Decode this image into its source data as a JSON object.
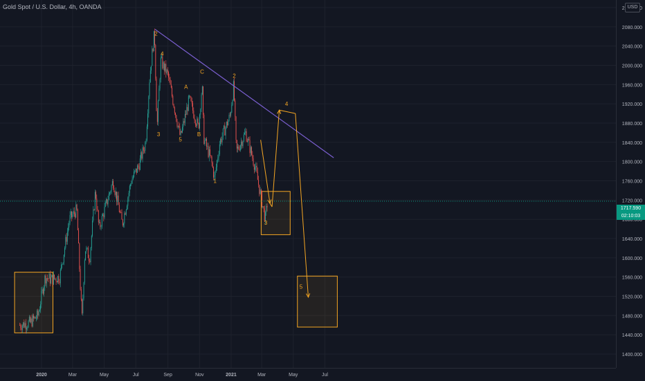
{
  "header": {
    "title": "Gold Spot / U.S. Dollar, 4h, OANDA",
    "currency": "USD"
  },
  "last_price": {
    "value": "1717.590",
    "countdown": "02:10:03"
  },
  "colors": {
    "background": "#131722",
    "grid": "#1e222d",
    "candle_up": "#26a69a",
    "candle_down": "#ef5350",
    "trendline": "#7b5fd1",
    "annotation": "#f5a623",
    "price_line": "#089981"
  },
  "chart_data": {
    "type": "candlestick",
    "symbol": "Gold Spot / U.S. Dollar",
    "interval": "4h",
    "ylim": [
      1400,
      2120
    ],
    "y_ticks": [
      1400,
      1440,
      1480,
      1520,
      1560,
      1600,
      1640,
      1680,
      1720,
      1760,
      1800,
      1840,
      1880,
      1920,
      1960,
      2000,
      2040,
      2080,
      2120
    ],
    "y_tick_labels": [
      "1400.000",
      "1440.000",
      "1480.000",
      "1520.000",
      "1560.000",
      "1600.000",
      "1640.000",
      "1680.000",
      "1720.000",
      "1760.000",
      "1800.000",
      "1840.000",
      "1880.000",
      "1920.000",
      "1960.000",
      "2000.000",
      "2040.000",
      "2080.000",
      "2120.000"
    ],
    "x_ticks": [
      {
        "label": "2020",
        "date": "2020-01-01",
        "bold": true
      },
      {
        "label": "Mar",
        "date": "2020-03-01",
        "bold": false
      },
      {
        "label": "May",
        "date": "2020-05-01",
        "bold": false
      },
      {
        "label": "Jul",
        "date": "2020-07-01",
        "bold": false
      },
      {
        "label": "Sep",
        "date": "2020-09-01",
        "bold": false
      },
      {
        "label": "Nov",
        "date": "2020-11-01",
        "bold": false
      },
      {
        "label": "2021",
        "date": "2021-01-01",
        "bold": true
      },
      {
        "label": "Mar",
        "date": "2021-03-01",
        "bold": false
      },
      {
        "label": "May",
        "date": "2021-05-01",
        "bold": false
      },
      {
        "label": "Jul",
        "date": "2021-07-01",
        "bold": false
      }
    ],
    "price_path": [
      [
        "2019-11-20",
        1460
      ],
      [
        "2019-12-10",
        1465
      ],
      [
        "2019-12-25",
        1480
      ],
      [
        "2020-01-08",
        1560
      ],
      [
        "2020-01-20",
        1555
      ],
      [
        "2020-02-05",
        1560
      ],
      [
        "2020-02-24",
        1680
      ],
      [
        "2020-03-09",
        1700
      ],
      [
        "2020-03-19",
        1470
      ],
      [
        "2020-03-25",
        1620
      ],
      [
        "2020-04-03",
        1600
      ],
      [
        "2020-04-14",
        1740
      ],
      [
        "2020-04-21",
        1660
      ],
      [
        "2020-05-18",
        1760
      ],
      [
        "2020-06-05",
        1670
      ],
      [
        "2020-06-22",
        1760
      ],
      [
        "2020-07-06",
        1790
      ],
      [
        "2020-07-20",
        1840
      ],
      [
        "2020-07-28",
        1980
      ],
      [
        "2020-08-06",
        2070
      ],
      [
        "2020-08-11",
        1870
      ],
      [
        "2020-08-18",
        2010
      ],
      [
        "2020-09-01",
        1980
      ],
      [
        "2020-09-25",
        1850
      ],
      [
        "2020-10-12",
        1930
      ],
      [
        "2020-10-30",
        1870
      ],
      [
        "2020-11-06",
        1960
      ],
      [
        "2020-11-09",
        1850
      ],
      [
        "2020-11-24",
        1800
      ],
      [
        "2020-11-30",
        1765
      ],
      [
        "2020-12-10",
        1840
      ],
      [
        "2020-12-30",
        1895
      ],
      [
        "2021-01-06",
        1960
      ],
      [
        "2021-01-11",
        1820
      ],
      [
        "2021-01-29",
        1860
      ],
      [
        "2021-02-16",
        1790
      ],
      [
        "2021-03-01",
        1720
      ],
      [
        "2021-03-08",
        1680
      ],
      [
        "2021-03-12",
        1715
      ]
    ],
    "wave_labels": [
      {
        "text": "2",
        "date": "2020-08-09",
        "price": 2062
      },
      {
        "text": "4",
        "date": "2020-08-21",
        "price": 2020
      },
      {
        "text": "3",
        "date": "2020-08-14",
        "price": 1853
      },
      {
        "text": "A",
        "date": "2020-10-06",
        "price": 1951
      },
      {
        "text": "5",
        "date": "2020-09-25",
        "price": 1842
      },
      {
        "text": "C",
        "date": "2020-11-06",
        "price": 1983
      },
      {
        "text": "B",
        "date": "2020-10-31",
        "price": 1853
      },
      {
        "text": "1",
        "date": "2020-12-01",
        "price": 1756
      },
      {
        "text": "2",
        "date": "2021-01-07",
        "price": 1974
      },
      {
        "text": "3",
        "date": "2021-03-09",
        "price": 1669
      },
      {
        "text": "4",
        "date": "2021-04-18",
        "price": 1916
      },
      {
        "text": "5",
        "date": "2021-05-16",
        "price": 1536
      }
    ],
    "trendline": {
      "from": [
        "2020-08-07",
        2075
      ],
      "to": [
        "2021-07-18",
        1808
      ]
    },
    "boxes": [
      {
        "from": [
          "2019-11-10",
          1570
        ],
        "to": [
          "2020-01-23",
          1444
        ]
      },
      {
        "from": [
          "2021-02-28",
          1738
        ],
        "to": [
          "2021-04-25",
          1648
        ]
      },
      {
        "from": [
          "2021-05-09",
          1562
        ],
        "to": [
          "2021-07-25",
          1456
        ]
      }
    ],
    "projection": [
      [
        "2021-02-27",
        1845
      ],
      [
        "2021-03-17",
        1713
      ],
      [
        "2021-03-21",
        1706
      ],
      [
        "2021-04-04",
        1907
      ],
      [
        "2021-05-05",
        1900
      ],
      [
        "2021-05-30",
        1518
      ]
    ]
  }
}
